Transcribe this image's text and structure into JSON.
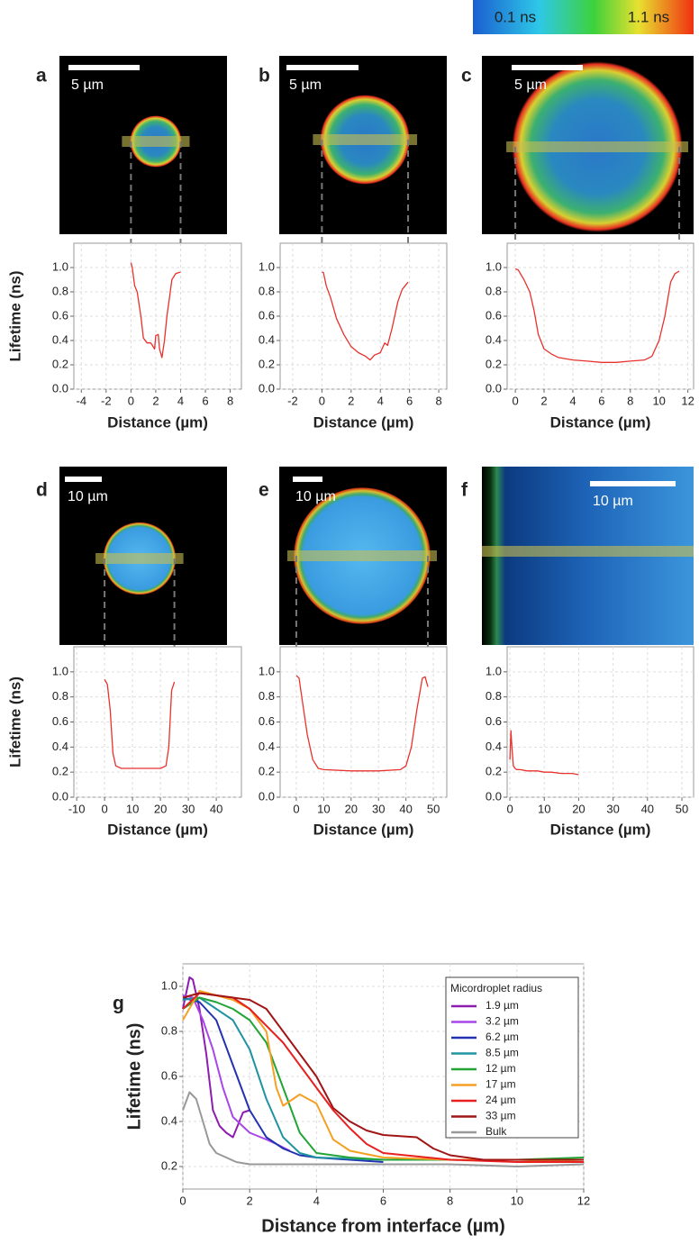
{
  "colorbar": {
    "labels": [
      "0.1 ns",
      "1.1 ns"
    ]
  },
  "chart_data": [
    {
      "type": "line",
      "panel": "a",
      "scale_bar": "5 µm",
      "x_label": "Distance (µm)",
      "y_label": "Lifetime (ns)",
      "color": "#e8322d",
      "grid": true,
      "xlim": [
        -4.6,
        8.9
      ],
      "xticks": [
        -4,
        -2,
        0,
        2,
        4,
        6,
        8
      ],
      "ylim": [
        0,
        1.2
      ],
      "yticks": [
        {
          "value": 0,
          "label": "0.0"
        },
        0.2,
        0.4,
        0.6,
        0.8,
        {
          "value": 1,
          "label": "1.0"
        }
      ],
      "x": [
        0,
        0.1,
        0.3,
        0.5,
        0.8,
        1.0,
        1.3,
        1.6,
        1.9,
        2.0,
        2.2,
        2.3,
        2.5,
        2.7,
        2.9,
        3.1,
        3.3,
        3.6,
        3.9,
        4.0
      ],
      "values": [
        1.04,
        1.0,
        0.85,
        0.8,
        0.6,
        0.42,
        0.38,
        0.38,
        0.33,
        0.44,
        0.45,
        0.33,
        0.26,
        0.4,
        0.6,
        0.75,
        0.9,
        0.95,
        0.96,
        0.96
      ]
    },
    {
      "type": "line",
      "panel": "b",
      "scale_bar": "5 µm",
      "x_label": "Distance (µm)",
      "color": "#e8322d",
      "grid": true,
      "xlim": [
        -2.86,
        8.55
      ],
      "xticks": [
        -2,
        0,
        2,
        4,
        6,
        8
      ],
      "ylim": [
        0,
        1.2
      ],
      "yticks": [
        {
          "value": 0,
          "label": "0.0"
        },
        0.2,
        0.4,
        0.6,
        0.8,
        {
          "value": 1,
          "label": "1.0"
        }
      ],
      "x": [
        0,
        0.1,
        0.3,
        0.6,
        1,
        1.5,
        2,
        2.5,
        3,
        3.3,
        3.6,
        4,
        4.3,
        4.5,
        4.8,
        5.2,
        5.5,
        5.9
      ],
      "values": [
        0.96,
        0.96,
        0.85,
        0.75,
        0.58,
        0.45,
        0.35,
        0.3,
        0.27,
        0.24,
        0.28,
        0.3,
        0.38,
        0.36,
        0.5,
        0.72,
        0.82,
        0.88
      ]
    },
    {
      "type": "line",
      "panel": "c",
      "scale_bar": "5 µm",
      "x_label": "Distance (µm)",
      "color": "#e8322d",
      "grid": true,
      "xlim": [
        -0.57,
        12.4
      ],
      "xticks": [
        0,
        2,
        4,
        6,
        8,
        10,
        12
      ],
      "ylim": [
        0,
        1.2
      ],
      "yticks": [
        {
          "value": 0,
          "label": "0.0"
        },
        0.2,
        0.4,
        0.6,
        0.8,
        {
          "value": 1,
          "label": "1.0"
        }
      ],
      "x": [
        0,
        0.2,
        0.6,
        1,
        1.3,
        1.6,
        2,
        2.5,
        3,
        4,
        5,
        6,
        7,
        8,
        9,
        9.5,
        10,
        10.4,
        10.8,
        11.1,
        11.4
      ],
      "values": [
        0.99,
        0.98,
        0.9,
        0.8,
        0.65,
        0.45,
        0.33,
        0.29,
        0.26,
        0.24,
        0.23,
        0.22,
        0.22,
        0.23,
        0.24,
        0.27,
        0.4,
        0.6,
        0.88,
        0.95,
        0.97
      ]
    },
    {
      "type": "line",
      "panel": "d",
      "scale_bar": "10 µm",
      "x_label": "Distance (µm)",
      "y_label": "Lifetime (ns)",
      "color": "#e8322d",
      "grid": true,
      "xlim": [
        -11,
        49
      ],
      "xticks": [
        -10,
        0,
        10,
        20,
        30,
        40
      ],
      "ylim": [
        0,
        1.2
      ],
      "yticks": [
        {
          "value": 0,
          "label": "0.0"
        },
        0.2,
        0.4,
        0.6,
        0.8,
        {
          "value": 1,
          "label": "1.0"
        }
      ],
      "x": [
        0,
        1,
        2,
        3,
        4,
        6,
        10,
        15,
        20,
        22,
        23,
        24,
        25
      ],
      "values": [
        0.94,
        0.9,
        0.7,
        0.35,
        0.25,
        0.23,
        0.23,
        0.23,
        0.23,
        0.25,
        0.4,
        0.85,
        0.92
      ]
    },
    {
      "type": "line",
      "panel": "e",
      "scale_bar": "10 µm",
      "x_label": "Distance (µm)",
      "color": "#e8322d",
      "grid": true,
      "xlim": [
        -5.9,
        54.9
      ],
      "xticks": [
        0,
        10,
        20,
        30,
        40,
        50
      ],
      "ylim": [
        0,
        1.2
      ],
      "yticks": [
        {
          "value": 0,
          "label": "0.0"
        },
        0.2,
        0.4,
        0.6,
        0.8,
        {
          "value": 1,
          "label": "1.0"
        }
      ],
      "x": [
        0,
        1,
        2,
        4,
        6,
        8,
        10,
        20,
        30,
        38,
        40,
        42,
        44,
        46,
        47,
        48
      ],
      "values": [
        0.97,
        0.95,
        0.8,
        0.5,
        0.3,
        0.23,
        0.22,
        0.21,
        0.21,
        0.22,
        0.25,
        0.4,
        0.7,
        0.95,
        0.96,
        0.88
      ]
    },
    {
      "type": "line",
      "panel": "f",
      "scale_bar": "10 µm",
      "x_label": "Distance (µm)",
      "color": "#e8322d",
      "grid": true,
      "xlim": [
        -0.8,
        53.4
      ],
      "xticks": [
        0,
        10,
        20,
        30,
        40,
        50
      ],
      "ylim": [
        0,
        1.2
      ],
      "yticks": [
        {
          "value": 0,
          "label": "0.0"
        },
        0.2,
        0.4,
        0.6,
        0.8,
        {
          "value": 1,
          "label": "1.0"
        }
      ],
      "x": [
        0,
        0.3,
        0.6,
        1,
        1.5,
        2,
        3,
        5,
        8,
        10,
        12,
        15,
        18,
        20
      ],
      "values": [
        0.3,
        0.53,
        0.4,
        0.25,
        0.23,
        0.22,
        0.22,
        0.21,
        0.21,
        0.2,
        0.2,
        0.19,
        0.19,
        0.18
      ]
    },
    {
      "type": "multiline",
      "panel": "g",
      "x_label": "Distance from interface (µm)",
      "y_label": "Lifetime (ns)",
      "legend_title": "Micordroplet radius",
      "grid": true,
      "xlim": [
        0,
        12
      ],
      "xticks": [
        0,
        2,
        4,
        6,
        8,
        10,
        12
      ],
      "ylim": [
        0.1,
        1.1
      ],
      "yticks": [
        0.2,
        0.4,
        0.6,
        0.8,
        {
          "value": 1,
          "label": "1.0"
        }
      ],
      "series": [
        {
          "name": "1.9 µm",
          "color": "#8e1cb0",
          "x": [
            0,
            0.2,
            0.3,
            0.5,
            0.7,
            0.9,
            1.1,
            1.3,
            1.5,
            1.8,
            2.0
          ],
          "values": [
            0.9,
            1.04,
            1.03,
            0.9,
            0.7,
            0.45,
            0.38,
            0.35,
            0.33,
            0.44,
            0.45
          ]
        },
        {
          "name": "3.2 µm",
          "color": "#a846e8",
          "x": [
            0,
            0.3,
            0.6,
            0.9,
            1.2,
            1.5,
            2,
            2.5,
            2.8,
            3.2
          ],
          "values": [
            0.96,
            0.95,
            0.85,
            0.72,
            0.55,
            0.42,
            0.35,
            0.32,
            0.3,
            0.27
          ]
        },
        {
          "name": "6.2 µm",
          "color": "#2232b0",
          "x": [
            0,
            0.5,
            1,
            1.5,
            2,
            2.5,
            3,
            3.5,
            4,
            5,
            6
          ],
          "values": [
            0.95,
            0.93,
            0.85,
            0.65,
            0.45,
            0.33,
            0.28,
            0.25,
            0.24,
            0.23,
            0.22
          ]
        },
        {
          "name": "8.5 µm",
          "color": "#1f93a0",
          "x": [
            0,
            0.5,
            1,
            1.5,
            2,
            2.5,
            3,
            3.5,
            4,
            6,
            8.5
          ],
          "values": [
            0.94,
            0.95,
            0.9,
            0.85,
            0.72,
            0.5,
            0.33,
            0.26,
            0.24,
            0.23,
            0.23
          ]
        },
        {
          "name": "12 µm",
          "color": "#22a535",
          "x": [
            0,
            0.5,
            1,
            1.5,
            2,
            2.5,
            3,
            3.5,
            4,
            5,
            6,
            8,
            10,
            12
          ],
          "values": [
            0.9,
            0.95,
            0.93,
            0.9,
            0.85,
            0.75,
            0.55,
            0.35,
            0.26,
            0.24,
            0.23,
            0.23,
            0.23,
            0.24
          ]
        },
        {
          "name": "17 µm",
          "color": "#f5a023",
          "x": [
            0,
            0.5,
            1,
            1.5,
            2,
            2.5,
            2.8,
            3,
            3.5,
            4,
            4.5,
            5,
            6,
            8,
            10,
            12
          ],
          "values": [
            0.85,
            0.98,
            0.96,
            0.94,
            0.9,
            0.8,
            0.55,
            0.47,
            0.52,
            0.48,
            0.32,
            0.27,
            0.24,
            0.23,
            0.23,
            0.22
          ]
        },
        {
          "name": "24 µm",
          "color": "#e82020",
          "x": [
            0,
            0.5,
            1,
            1.5,
            2,
            3,
            3.5,
            4,
            4.5,
            5,
            5.5,
            6,
            8,
            10,
            12
          ],
          "values": [
            0.9,
            0.97,
            0.96,
            0.95,
            0.9,
            0.75,
            0.65,
            0.55,
            0.45,
            0.37,
            0.3,
            0.26,
            0.23,
            0.22,
            0.22
          ]
        },
        {
          "name": "33 µm",
          "color": "#a01515",
          "x": [
            0,
            0.5,
            1,
            2,
            2.5,
            3,
            4,
            4.5,
            5,
            5.5,
            6,
            7,
            7.5,
            8,
            9,
            10,
            12
          ],
          "values": [
            0.95,
            0.97,
            0.96,
            0.94,
            0.9,
            0.8,
            0.6,
            0.46,
            0.4,
            0.36,
            0.34,
            0.33,
            0.28,
            0.25,
            0.23,
            0.23,
            0.23
          ]
        },
        {
          "name": "Bulk",
          "color": "#999999",
          "x": [
            0,
            0.2,
            0.4,
            0.6,
            0.8,
            1,
            1.3,
            1.6,
            2,
            3,
            4,
            6,
            8,
            10,
            12
          ],
          "values": [
            0.45,
            0.53,
            0.5,
            0.4,
            0.3,
            0.26,
            0.24,
            0.22,
            0.21,
            0.21,
            0.21,
            0.21,
            0.21,
            0.2,
            0.21
          ]
        }
      ]
    }
  ]
}
